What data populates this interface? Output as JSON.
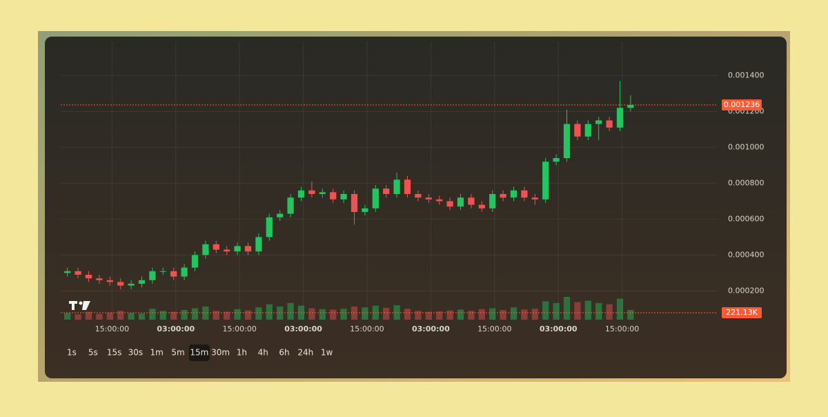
{
  "chart_data": {
    "type": "candlestick",
    "open": [
      0.0003,
      0.00031,
      0.00029,
      0.00027,
      0.00026,
      0.00025,
      0.00023,
      0.00024,
      0.00026,
      0.00031,
      0.00031,
      0.00028,
      0.00033,
      0.0004,
      0.00046,
      0.00043,
      0.00042,
      0.00045,
      0.00042,
      0.0005,
      0.00061,
      0.00063,
      0.00072,
      0.00076,
      0.00074,
      0.00075,
      0.00071,
      0.00074,
      0.00064,
      0.00066,
      0.00077,
      0.00074,
      0.00082,
      0.00074,
      0.00072,
      0.00071,
      0.0007,
      0.00067,
      0.00072,
      0.00068,
      0.00066,
      0.00074,
      0.00072,
      0.00076,
      0.00072,
      0.00071,
      0.00092,
      0.00094,
      0.00113,
      0.00106,
      0.00113,
      0.00115,
      0.00111,
      0.00122
    ],
    "high": [
      0.00033,
      0.00033,
      0.00031,
      0.00029,
      0.00028,
      0.00027,
      0.00026,
      0.00028,
      0.00033,
      0.00033,
      0.00033,
      0.00035,
      0.00042,
      0.00048,
      0.00048,
      0.00045,
      0.00047,
      0.00047,
      0.00052,
      0.00063,
      0.00065,
      0.00074,
      0.00078,
      0.00081,
      0.00077,
      0.00077,
      0.00076,
      0.00076,
      0.00068,
      0.00079,
      0.00079,
      0.00086,
      0.00084,
      0.00076,
      0.00074,
      0.00073,
      0.00072,
      0.00074,
      0.00074,
      0.0007,
      0.00076,
      0.00076,
      0.00078,
      0.00078,
      0.00074,
      0.00094,
      0.00096,
      0.00121,
      0.00115,
      0.00115,
      0.00117,
      0.00117,
      0.00137,
      0.00129
    ],
    "low": [
      0.00028,
      0.00027,
      0.00025,
      0.00024,
      0.00023,
      0.00021,
      0.00021,
      0.00022,
      0.00024,
      0.00029,
      0.00026,
      0.00026,
      0.00031,
      0.00038,
      0.00041,
      0.0004,
      0.0004,
      0.0004,
      0.0004,
      0.00048,
      0.00059,
      0.00061,
      0.0007,
      0.00072,
      0.00072,
      0.00069,
      0.00069,
      0.00057,
      0.00062,
      0.00064,
      0.00072,
      0.00072,
      0.00072,
      0.0007,
      0.00069,
      0.00068,
      0.00065,
      0.00065,
      0.00066,
      0.00064,
      0.00064,
      0.0007,
      0.0007,
      0.0007,
      0.00068,
      0.00069,
      0.0009,
      0.00092,
      0.00104,
      0.00104,
      0.00104,
      0.00109,
      0.00109,
      0.0012
    ],
    "close": [
      0.00031,
      0.00029,
      0.00027,
      0.00026,
      0.00025,
      0.00023,
      0.00024,
      0.00026,
      0.00031,
      0.00031,
      0.00028,
      0.00033,
      0.0004,
      0.00046,
      0.00043,
      0.00042,
      0.00045,
      0.00042,
      0.0005,
      0.00061,
      0.00063,
      0.00072,
      0.00076,
      0.00074,
      0.00075,
      0.00071,
      0.00074,
      0.00064,
      0.00066,
      0.00077,
      0.00074,
      0.00082,
      0.00074,
      0.00072,
      0.00071,
      0.0007,
      0.00067,
      0.00072,
      0.00068,
      0.00066,
      0.00074,
      0.00072,
      0.00076,
      0.00072,
      0.00071,
      0.00092,
      0.00094,
      0.00113,
      0.00106,
      0.00113,
      0.00115,
      0.00111,
      0.00122,
      0.001236
    ],
    "volume": [
      150000,
      120000,
      180000,
      130000,
      160000,
      200000,
      150000,
      140000,
      250000,
      200000,
      180000,
      220000,
      260000,
      300000,
      200000,
      180000,
      240000,
      210000,
      280000,
      350000,
      300000,
      380000,
      320000,
      260000,
      240000,
      230000,
      250000,
      300000,
      280000,
      320000,
      270000,
      330000,
      250000,
      200000,
      180000,
      190000,
      210000,
      230000,
      200000,
      240000,
      260000,
      220000,
      280000,
      230000,
      250000,
      420000,
      380000,
      520000,
      400000,
      430000,
      380000,
      350000,
      480000,
      221130
    ],
    "up_color": "#22c55e",
    "down_color": "#ef5350",
    "ylim": [
      4e-05,
      0.00159
    ],
    "yticks": [
      {
        "value": 0.0002,
        "label": "0.000200"
      },
      {
        "value": 0.0004,
        "label": "0.000400"
      },
      {
        "value": 0.0006,
        "label": "0.000600"
      },
      {
        "value": 0.0008,
        "label": "0.000800"
      },
      {
        "value": 0.001,
        "label": "0.001000"
      },
      {
        "value": 0.0012,
        "label": "0.001200"
      },
      {
        "value": 0.0014,
        "label": "0.001400"
      }
    ],
    "xlim": [
      0,
      54
    ],
    "xticks": [
      {
        "value": 4.7,
        "label": "15:00:00"
      },
      {
        "value": 10.7,
        "label": "03:00:00"
      },
      {
        "value": 16.7,
        "label": "15:00:00"
      },
      {
        "value": 22.7,
        "label": "03:00:00"
      },
      {
        "value": 28.7,
        "label": "15:00:00"
      },
      {
        "value": 34.7,
        "label": "03:00:00"
      },
      {
        "value": 40.7,
        "label": "15:00:00"
      },
      {
        "value": 46.7,
        "label": "03:00:00"
      },
      {
        "value": 52.7,
        "label": "15:00:00"
      }
    ],
    "last_price": {
      "value": 0.001236,
      "label": "0.001236"
    },
    "last_volume": {
      "value": 221130,
      "label": "221.13K"
    },
    "grid": true
  },
  "intervals": [
    {
      "label": "1s"
    },
    {
      "label": "5s"
    },
    {
      "label": "15s"
    },
    {
      "label": "30s"
    },
    {
      "label": "1m"
    },
    {
      "label": "5m"
    },
    {
      "label": "15m",
      "selected": true
    },
    {
      "label": "30m"
    },
    {
      "label": "1h"
    },
    {
      "label": "4h"
    },
    {
      "label": "6h"
    },
    {
      "label": "24h"
    },
    {
      "label": "1w"
    }
  ]
}
